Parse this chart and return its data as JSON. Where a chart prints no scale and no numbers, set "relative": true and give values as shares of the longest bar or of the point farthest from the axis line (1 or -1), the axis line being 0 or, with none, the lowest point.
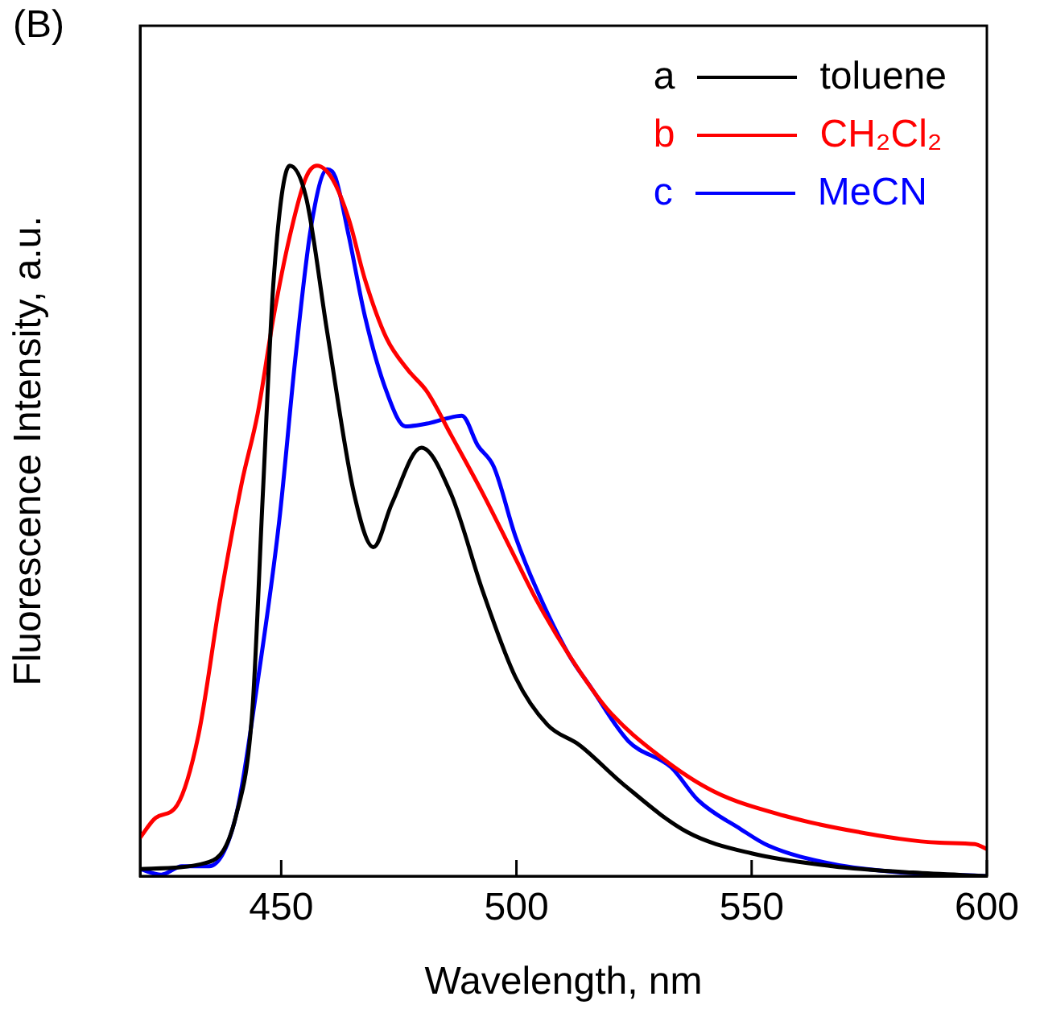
{
  "chart_data": {
    "type": "line",
    "relative": true,
    "xlabel": "Wavelength, nm",
    "ylabel": "Fluorescence Intensity, a.u.",
    "xlim": [
      420,
      600
    ],
    "xticks": [
      450,
      500,
      550,
      600
    ],
    "legend": "top right",
    "grid": false,
    "marker": "none",
    "line_style": "solid",
    "annotations": [
      "(B)",
      "a",
      "b",
      "c"
    ],
    "series": [
      {
        "name": "toluene",
        "color": "#000000",
        "x": [
          420,
          434.7,
          440.4,
          443.9,
          446.1,
          448.4,
          451.8,
          455.3,
          459.8,
          465.5,
          469.6,
          473.5,
          479.8,
          486.1,
          492.9,
          499.8,
          506.6,
          513.5,
          522.6,
          536.3,
          550,
          567.2,
          584.3,
          600
        ],
        "values": [
          0.01,
          0.02,
          0.085,
          0.236,
          0.538,
          0.84,
          1,
          0.955,
          0.765,
          0.538,
          0.463,
          0.524,
          0.603,
          0.538,
          0.4,
          0.28,
          0.213,
          0.184,
          0.13,
          0.062,
          0.032,
          0.014,
          0.005,
          0
        ]
      },
      {
        "name": "CH₂Cl₂",
        "color": "#ff0000",
        "x": [
          420,
          423.3,
          427.9,
          432.4,
          437,
          441.6,
          445,
          448.4,
          451.8,
          455.3,
          457.6,
          461,
          464.4,
          467.8,
          472.4,
          477,
          481,
          486.1,
          492.9,
          499.8,
          504.4,
          511.2,
          519.2,
          530.6,
          542,
          556.9,
          572.8,
          590,
          597.4,
          600
        ],
        "values": [
          0.054,
          0.082,
          0.1,
          0.198,
          0.388,
          0.553,
          0.651,
          0.788,
          0.9,
          0.984,
          1,
          0.98,
          0.924,
          0.84,
          0.757,
          0.712,
          0.682,
          0.621,
          0.538,
          0.447,
          0.387,
          0.311,
          0.236,
          0.168,
          0.119,
          0.085,
          0.062,
          0.047,
          0.045,
          0.038
        ]
      },
      {
        "name": "MeCN",
        "color": "#0000ff",
        "x": [
          420,
          424.5,
          428.9,
          434.7,
          440.4,
          445,
          449.6,
          453,
          456.4,
          459.8,
          461.5,
          464.4,
          467.8,
          472.4,
          476.4,
          481,
          485,
          488.4,
          491.8,
          495.2,
          499.8,
          504.4,
          511.2,
          515.8,
          523.8,
          532.9,
          538.6,
          547.7,
          553.5,
          567.2,
          582,
          600
        ],
        "values": [
          0.01,
          0.002,
          0.014,
          0.014,
          0.085,
          0.274,
          0.501,
          0.728,
          0.916,
          0.995,
          0.984,
          0.9,
          0.788,
          0.682,
          0.633,
          0.637,
          0.644,
          0.648,
          0.606,
          0.576,
          0.478,
          0.402,
          0.311,
          0.266,
          0.19,
          0.153,
          0.107,
          0.066,
          0.043,
          0.017,
          0.005,
          0
        ]
      }
    ]
  }
}
